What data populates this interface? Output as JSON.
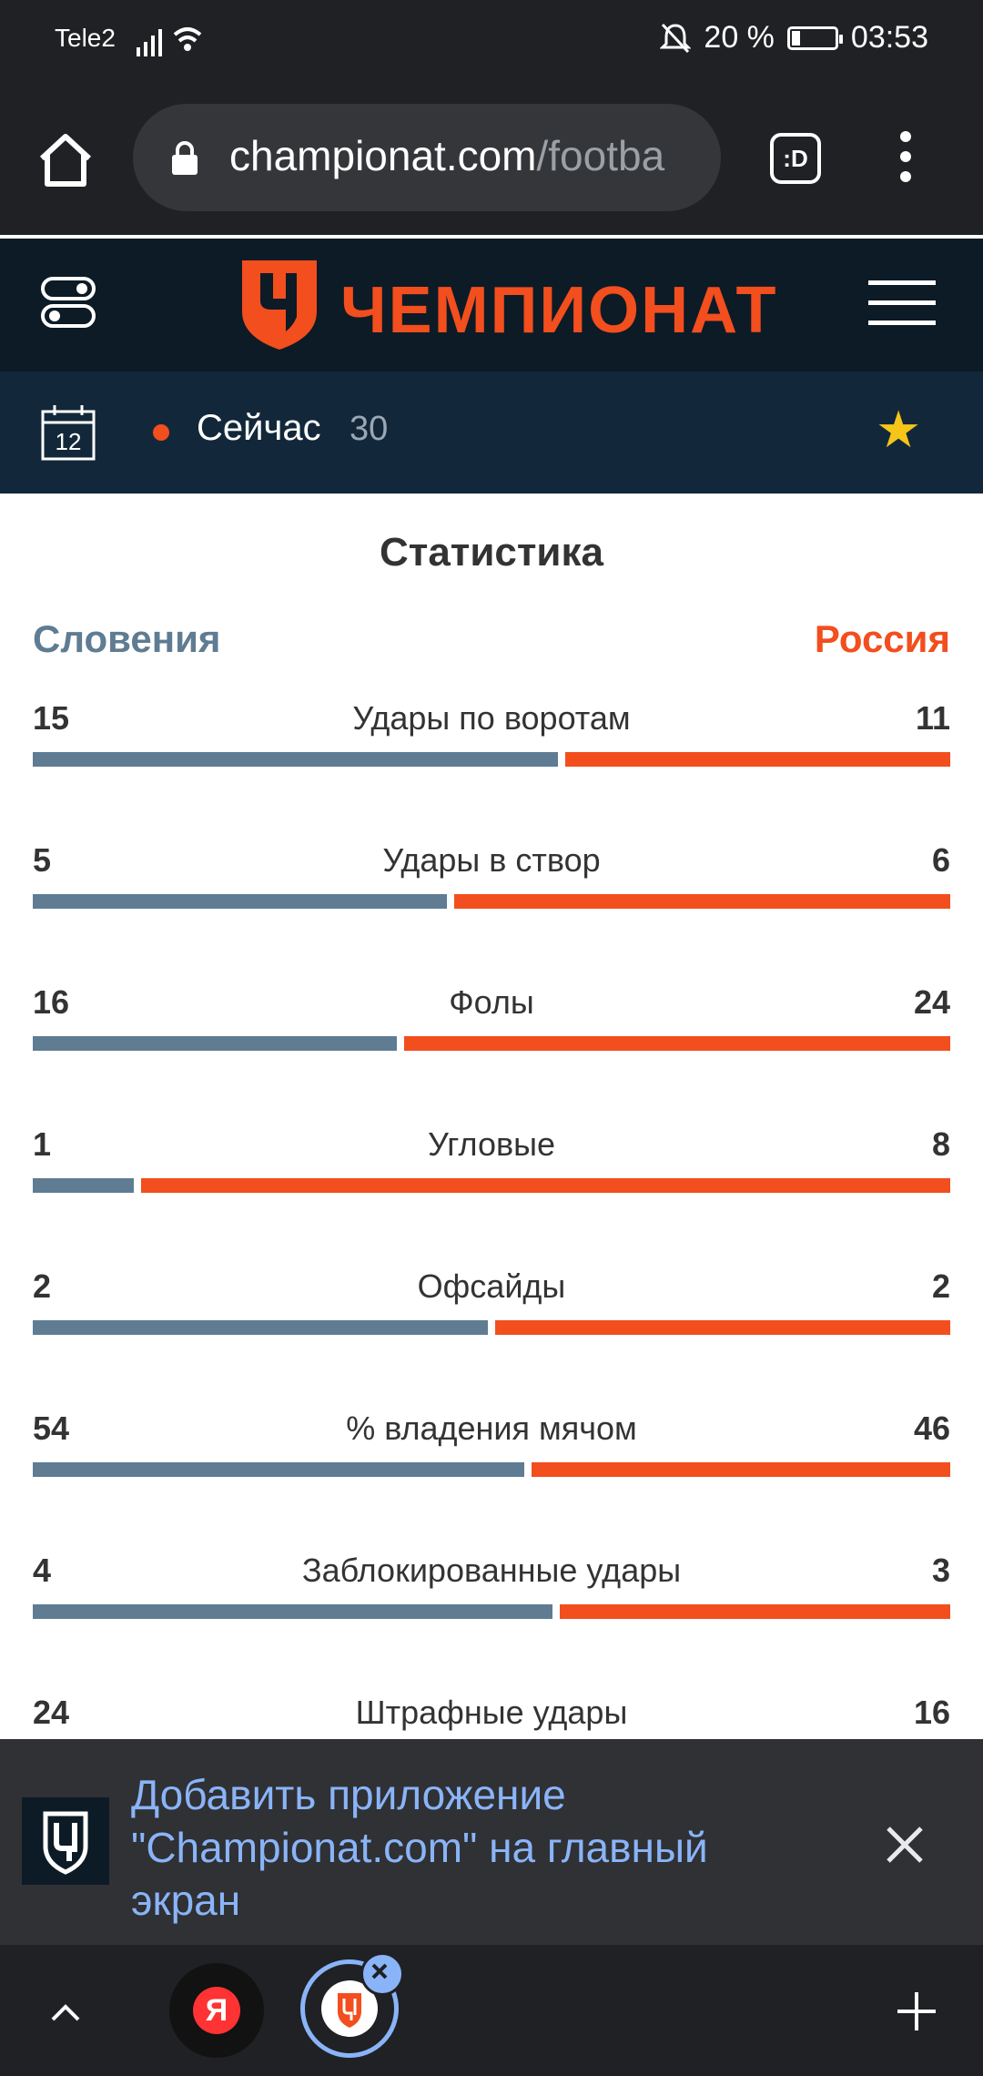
{
  "status_bar": {
    "carrier": "Tele2",
    "battery": "20 %",
    "battery_level": 0.2,
    "time": "03:53"
  },
  "browser": {
    "url_domain": "championat.com",
    "url_path": "/footba",
    "tabs_label": ":D"
  },
  "site": {
    "logo_text": "ЧЕМПИОНАТ",
    "brand_color": "#f24e1e"
  },
  "match_bar": {
    "calendar_day": "12",
    "live_label": "Сейчас",
    "minute": "30"
  },
  "stats": {
    "title": "Статистика",
    "home_team": "Словения",
    "away_team": "Россия",
    "home_color": "#5f7c92",
    "away_color": "#f24e1e",
    "rows": [
      {
        "label": "Удары по воротам",
        "home": "15",
        "away": "11"
      },
      {
        "label": "Удары в створ",
        "home": "5",
        "away": "6"
      },
      {
        "label": "Фолы",
        "home": "16",
        "away": "24"
      },
      {
        "label": "Угловые",
        "home": "1",
        "away": "8"
      },
      {
        "label": "Офсайды",
        "home": "2",
        "away": "2"
      },
      {
        "label": "% владения мячом",
        "home": "54",
        "away": "46"
      },
      {
        "label": "Заблокированные удары",
        "home": "4",
        "away": "3"
      },
      {
        "label": "Штрафные удары",
        "home": "24",
        "away": "16"
      }
    ]
  },
  "install_banner": {
    "text": "Добавить приложение \"Championat.com\" на главный экран"
  },
  "bottom_bar": {
    "yandex_tab": "Я"
  }
}
